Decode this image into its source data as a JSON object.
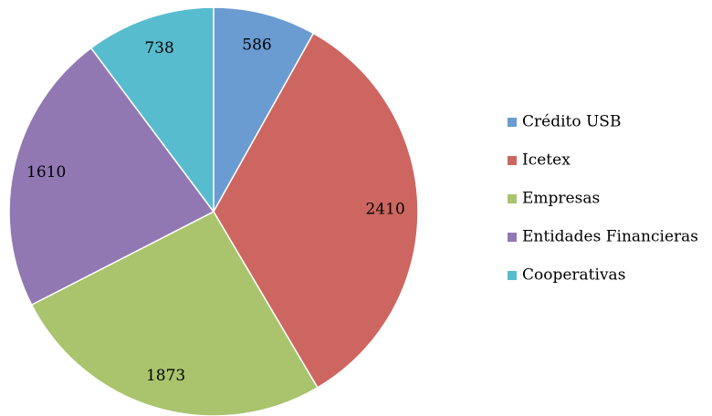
{
  "chart_data": {
    "type": "pie",
    "categories": [
      "Crédito USB",
      "Icetex",
      "Empresas",
      "Entidades Financieras",
      "Cooperativas"
    ],
    "values": [
      586,
      2410,
      1873,
      1610,
      738
    ],
    "colors": [
      "#6a9bd1",
      "#cd6660",
      "#a9c46d",
      "#9178b3",
      "#58bccf"
    ],
    "legend": "right"
  }
}
